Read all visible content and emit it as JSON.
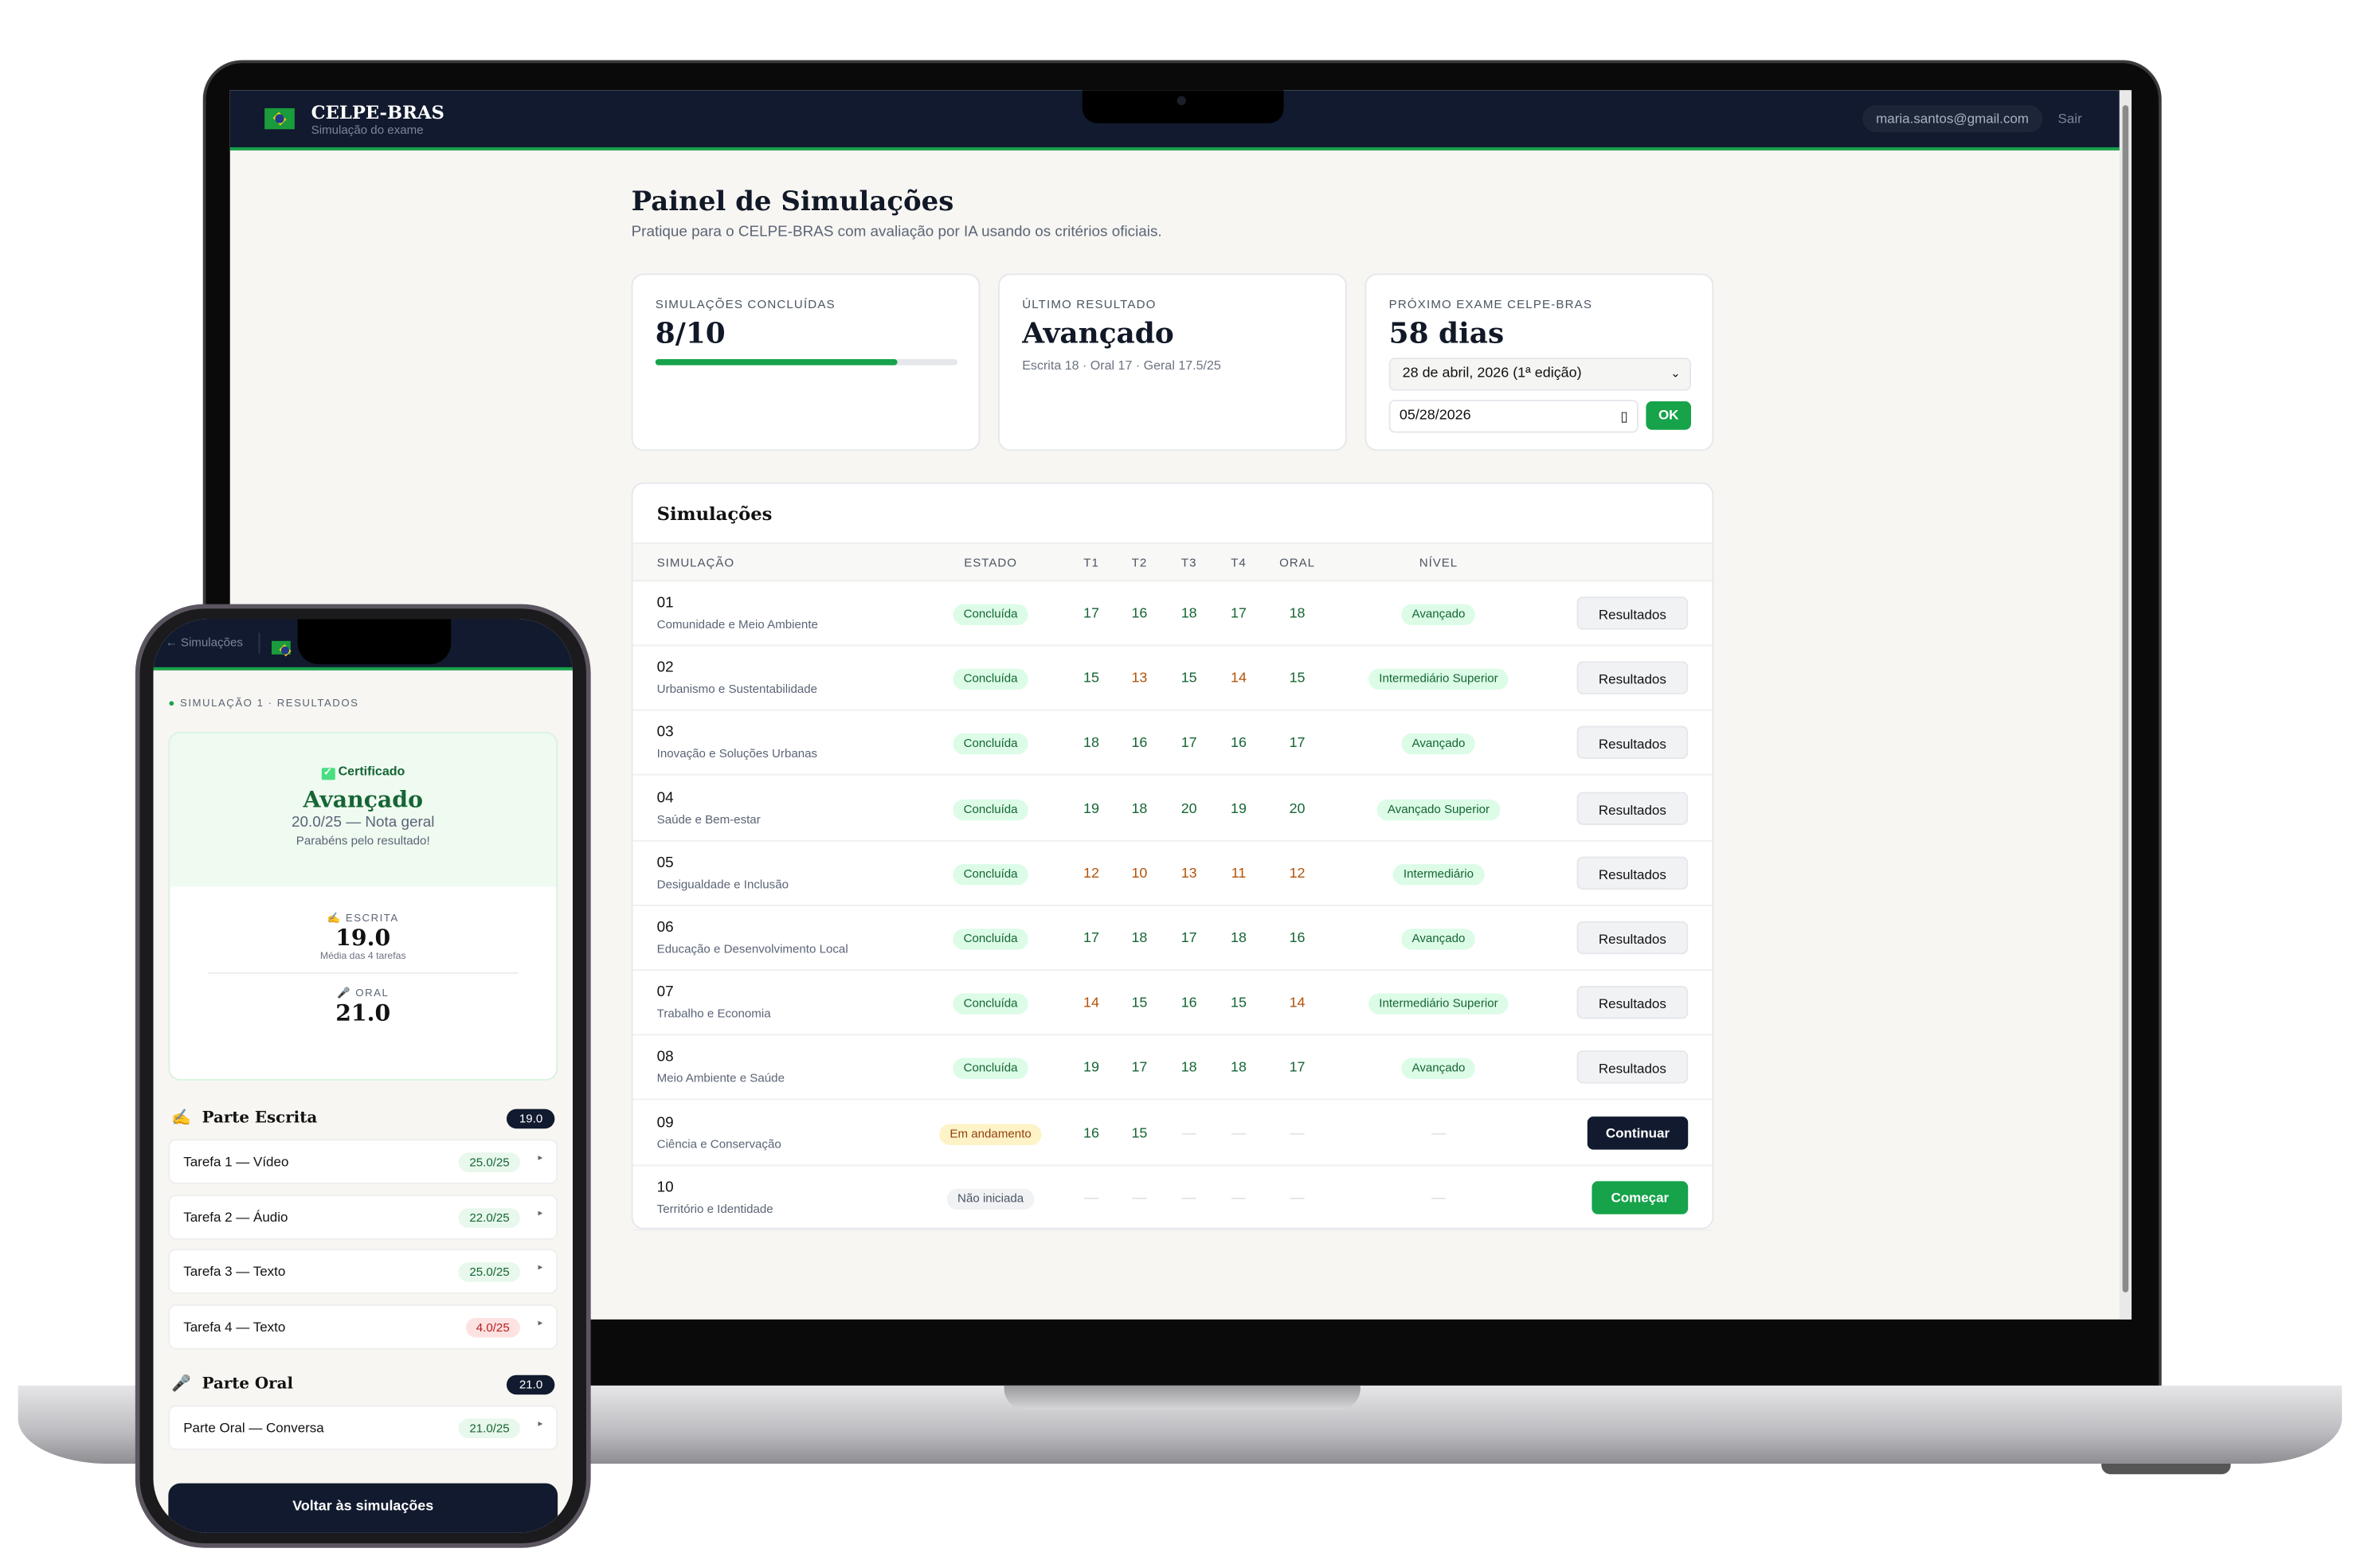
{
  "colors": {
    "accent": "#16a34a",
    "header": "#111a2e",
    "warn": "#b45309",
    "danger": "#dc2626"
  },
  "laptop": {
    "header": {
      "brand": "CELPE-BRAS",
      "tagline": "Simulação do exame",
      "email": "maria.santos@gmail.com",
      "logout": "Sair",
      "flag_icon": "brazil-flag-icon"
    },
    "title": "Painel de Simulações",
    "subtitle": "Pratique para o CELPE-BRAS com avaliação por IA usando os critérios oficiais.",
    "cards": {
      "done": {
        "label": "SIMULAÇÕES CONCLUÍDAS",
        "value": "8/10",
        "progress_percent": 80
      },
      "last": {
        "label": "ÚLTIMO RESULTADO",
        "value": "Avançado",
        "detail": "Escrita 18 · Oral 17 · Geral 17.5/25"
      },
      "next": {
        "label": "PRÓXIMO EXAME CELPE-BRAS",
        "value": "58 dias",
        "select": "28 de abril, 2026 (1ª edição)",
        "date": "05/28/2026",
        "ok": "OK"
      }
    },
    "table": {
      "title": "Simulações",
      "headers": [
        "SIMULAÇÃO",
        "ESTADO",
        "T1",
        "T2",
        "T3",
        "T4",
        "ORAL",
        "NÍVEL"
      ],
      "rows": [
        {
          "num": "01",
          "name": "Comunidade e Meio Ambiente",
          "status": "Concluída",
          "s": [
            "17",
            "16",
            "18",
            "17",
            "18"
          ],
          "level": "Avançado",
          "action": "Resultados"
        },
        {
          "num": "02",
          "name": "Urbanismo e Sustentabilidade",
          "status": "Concluída",
          "s": [
            "15",
            "13",
            "15",
            "14",
            "15"
          ],
          "level": "Intermediário Superior",
          "action": "Resultados"
        },
        {
          "num": "03",
          "name": "Inovação e Soluções Urbanas",
          "status": "Concluída",
          "s": [
            "18",
            "16",
            "17",
            "16",
            "17"
          ],
          "level": "Avançado",
          "action": "Resultados"
        },
        {
          "num": "04",
          "name": "Saúde e Bem-estar",
          "status": "Concluída",
          "s": [
            "19",
            "18",
            "20",
            "19",
            "20"
          ],
          "level": "Avançado Superior",
          "action": "Resultados"
        },
        {
          "num": "05",
          "name": "Desigualdade e Inclusão",
          "status": "Concluída",
          "s": [
            "12",
            "10",
            "13",
            "11",
            "12"
          ],
          "level": "Intermediário",
          "action": "Resultados"
        },
        {
          "num": "06",
          "name": "Educação e Desenvolvimento Local",
          "status": "Concluída",
          "s": [
            "17",
            "18",
            "17",
            "18",
            "16"
          ],
          "level": "Avançado",
          "action": "Resultados"
        },
        {
          "num": "07",
          "name": "Trabalho e Economia",
          "status": "Concluída",
          "s": [
            "14",
            "15",
            "16",
            "15",
            "14"
          ],
          "level": "Intermediário Superior",
          "action": "Resultados"
        },
        {
          "num": "08",
          "name": "Meio Ambiente e Saúde",
          "status": "Concluída",
          "s": [
            "19",
            "17",
            "18",
            "18",
            "17"
          ],
          "level": "Avançado",
          "action": "Resultados"
        },
        {
          "num": "09",
          "name": "Ciência e Conservação",
          "status": "Em andamento",
          "s": [
            "16",
            "15",
            "—",
            "—",
            "—"
          ],
          "level": "—",
          "action": "Continuar"
        },
        {
          "num": "10",
          "name": "Território e Identidade",
          "status": "Não iniciada",
          "s": [
            "—",
            "—",
            "—",
            "—",
            "—"
          ],
          "level": "—",
          "action": "Começar"
        }
      ]
    }
  },
  "phone": {
    "back": "← Simulações",
    "kicker": "SIMULAÇÃO 1 · RESULTADOS",
    "certified": "Certificado",
    "level": "Avançado",
    "overall": "20.0/25 — Nota geral",
    "congrats": "Parabéns pelo resultado!",
    "escrita": {
      "label": "ESCRITA",
      "value": "19.0",
      "note": "Média das 4 tarefas"
    },
    "oral": {
      "label": "ORAL",
      "value": "21.0"
    },
    "written_section": {
      "title": "Parte Escrita",
      "badge": "19.0",
      "tasks": [
        {
          "label": "Tarefa 1 — Vídeo",
          "score": "25.0/25",
          "tone": "good"
        },
        {
          "label": "Tarefa 2 — Áudio",
          "score": "22.0/25",
          "tone": "good"
        },
        {
          "label": "Tarefa 3 — Texto",
          "score": "25.0/25",
          "tone": "good"
        },
        {
          "label": "Tarefa 4 — Texto",
          "score": "4.0/25",
          "tone": "bad"
        }
      ]
    },
    "oral_section": {
      "title": "Parte Oral",
      "badge": "21.0",
      "tasks": [
        {
          "label": "Parte Oral — Conversa",
          "score": "21.0/25",
          "tone": "good"
        }
      ]
    },
    "back_button": "Voltar às simulações"
  }
}
